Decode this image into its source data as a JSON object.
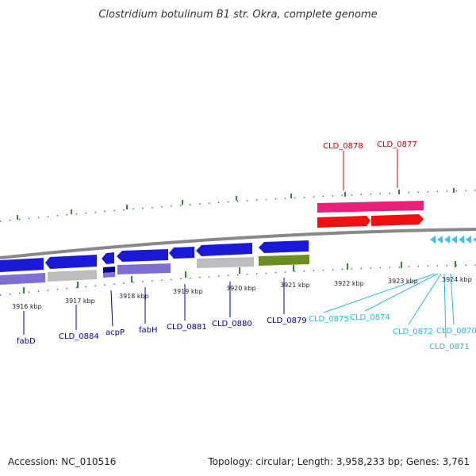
{
  "title": "Clostridium botulinum B1 str. Okra, complete genome",
  "footer": {
    "accession": "Accession: NC_010516",
    "topology": "Topology: circular; Length: 3,958,233 bp; Genes: 3,761"
  },
  "colors": {
    "background": "#ffffff",
    "backbone": "#888888",
    "tick": "#2e8b2e",
    "forward_label": "#cc0000",
    "reverse_label": "#000099",
    "cyan_label": "#22bbdd"
  },
  "tick_labels": [
    "3916 kbp",
    "3917 kbp",
    "3918 kbp",
    "3919 kbp",
    "3920 kbp",
    "3921 kbp",
    "3922 kbp",
    "3923 kbp",
    "3924 kbp"
  ],
  "gene_labels": [
    {
      "text": "CLD_0878",
      "group": "forward"
    },
    {
      "text": "CLD_0877",
      "group": "forward"
    },
    {
      "text": "fabD",
      "group": "reverse"
    },
    {
      "text": "CLD_0884",
      "group": "reverse"
    },
    {
      "text": "acpP",
      "group": "reverse"
    },
    {
      "text": "fabH",
      "group": "reverse"
    },
    {
      "text": "CLD_0881",
      "group": "reverse"
    },
    {
      "text": "CLD_0880",
      "group": "reverse"
    },
    {
      "text": "CLD_0879",
      "group": "reverse"
    },
    {
      "text": "CLD_0875",
      "group": "cyan"
    },
    {
      "text": "CLD_0874",
      "group": "cyan"
    },
    {
      "text": "CLD_0872",
      "group": "cyan"
    },
    {
      "text": "CLD_0870",
      "group": "cyan"
    },
    {
      "text": "CLD_0871",
      "group": "cyan"
    }
  ]
}
